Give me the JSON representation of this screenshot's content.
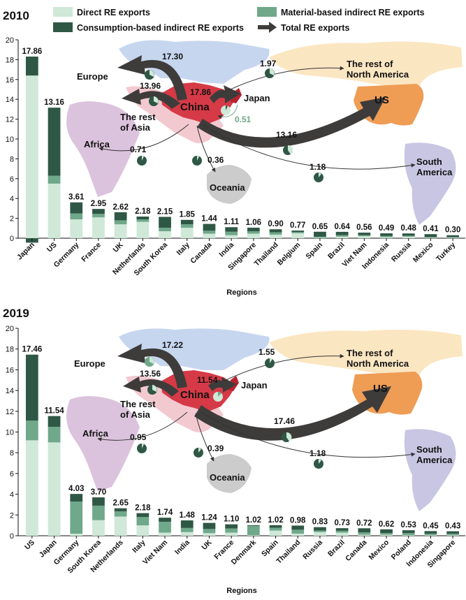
{
  "legend": {
    "direct": "Direct RE exports",
    "material": "Material-based indirect RE exports",
    "consumption": "Consumption-based indirect RE exports",
    "total": "Total RE exports"
  },
  "colors": {
    "direct": "#cfe8d8",
    "material": "#6fa88a",
    "consumption": "#2f5745",
    "arrow": "#3e3c3b",
    "thin_arrow": "#333333",
    "china": "#d63a47",
    "usa": "#ef9c55",
    "south_america": "#c8c6e3",
    "europe": "#c6d6ef",
    "asia": "#f3c9d0",
    "africa": "#dcc3dd",
    "oceania": "#cccccc",
    "north_america_rest": "#fbe6c2"
  },
  "chart_data": [
    {
      "type": "bar",
      "stacked": true,
      "title": "2010",
      "xlabel": "Regions",
      "ylabel": "",
      "ylim": [
        0,
        20
      ],
      "yticks": [
        "0",
        "2",
        "4",
        "6",
        "8",
        "10",
        "12",
        "14",
        "16",
        "18",
        "20"
      ],
      "categories": [
        "Japan",
        "US",
        "Germany",
        "France",
        "UK",
        "Netherlands",
        "South Korea",
        "Italy",
        "Canada",
        "India",
        "Singapore",
        "Thailand",
        "Belgium",
        "Spain",
        "Brazil",
        "Viet Nam",
        "Indonesia",
        "Russia",
        "Mexico",
        "Turkey"
      ],
      "value_labels": [
        "17.86",
        "13.16",
        "3.61",
        "2.95",
        "2.62",
        "2.18",
        "2.15",
        "1.85",
        "1.44",
        "1.11",
        "1.06",
        "0.90",
        "0.77",
        "0.65",
        "0.64",
        "0.56",
        "0.49",
        "0.48",
        "0.41",
        "0.30"
      ],
      "series": [
        {
          "name": "Direct RE exports",
          "values": [
            16.4,
            5.5,
            1.9,
            2.1,
            1.4,
            1.65,
            0.7,
            1.05,
            0.45,
            0.3,
            0.45,
            0.35,
            0.5,
            0.05,
            0.15,
            0.2,
            0.1,
            0.15,
            0.05,
            0.05
          ]
        },
        {
          "name": "Material-based indirect RE exports",
          "values": [
            0,
            0.8,
            0.6,
            0.35,
            0.4,
            0.25,
            0.35,
            0.35,
            0.3,
            0.35,
            0.25,
            0.25,
            0.12,
            0.1,
            0.15,
            0.1,
            0.12,
            0.1,
            0.06,
            0.05
          ]
        },
        {
          "name": "Consumption-based indirect RE exports",
          "values": [
            1.91,
            6.86,
            1.11,
            0.5,
            0.82,
            0.28,
            1.1,
            0.45,
            0.69,
            0.46,
            0.36,
            0.3,
            0.15,
            0.5,
            0.34,
            0.26,
            0.27,
            0.23,
            0.3,
            0.2
          ]
        }
      ],
      "negative_segment": {
        "category": "Japan",
        "series": "Consumption-based indirect RE exports",
        "value": -0.45
      },
      "map": {
        "region_labels": {
          "europe": "Europe",
          "rest_asia": "The rest\nof Asia",
          "china": "China",
          "japan": "Japan",
          "rest_na": "The rest of\nNorth America",
          "us": "US",
          "africa": "Africa",
          "oceania": "Oceania",
          "south_america": "South\nAmerica"
        },
        "flows": [
          {
            "to": "Europe",
            "value": 17.3,
            "label": "17.30"
          },
          {
            "to": "The rest of Asia",
            "value": 13.96,
            "label": "13.96"
          },
          {
            "to": "Japan",
            "value": 17.86,
            "label": "17.86"
          },
          {
            "to": "US",
            "value": 13.16,
            "label": "13.16"
          },
          {
            "to": "The rest of North America",
            "value": 1.97,
            "label": "1.97"
          },
          {
            "to": "Africa",
            "value": 0.71,
            "label": "0.71"
          },
          {
            "to": "Oceania",
            "value": 0.36,
            "label": "0.36"
          },
          {
            "to": "South America",
            "value": 1.18,
            "label": "1.18"
          }
        ],
        "extra_label": "0.51"
      }
    },
    {
      "type": "bar",
      "stacked": true,
      "title": "2019",
      "xlabel": "Regions",
      "ylabel": "",
      "ylim": [
        0,
        20
      ],
      "yticks": [
        "0",
        "2",
        "4",
        "6",
        "8",
        "10",
        "12",
        "14",
        "16",
        "18",
        "20"
      ],
      "categories": [
        "US",
        "Japan",
        "Germany",
        "South Korea",
        "Netherlands",
        "Italy",
        "Viet Nam",
        "India",
        "UK",
        "France",
        "Denmark",
        "Spain",
        "Thailand",
        "Russia",
        "Brazil",
        "Canada",
        "Mexico",
        "Poland",
        "Indonesia",
        "Singapore"
      ],
      "value_labels": [
        "17.46",
        "11.54",
        "4.03",
        "3.70",
        "2.65",
        "2.18",
        "1.74",
        "1.48",
        "1.24",
        "1.10",
        "1.02",
        "1.02",
        "0.98",
        "0.83",
        "0.73",
        "0.72",
        "0.62",
        "0.53",
        "0.45",
        "0.43"
      ],
      "series": [
        {
          "name": "Direct RE exports",
          "values": [
            9.2,
            9.0,
            0.2,
            1.5,
            1.85,
            1.0,
            0.3,
            0.35,
            0.25,
            0.3,
            0.05,
            0.5,
            0.2,
            0.35,
            0.3,
            0.1,
            0.1,
            0.05,
            0.05,
            0.05
          ]
        },
        {
          "name": "Material-based indirect RE exports",
          "values": [
            1.9,
            1.5,
            3.1,
            1.4,
            0.5,
            0.8,
            1.05,
            0.4,
            0.4,
            0.4,
            0.9,
            0.27,
            0.38,
            0.15,
            0.18,
            0.22,
            0.15,
            0.2,
            0.15,
            0.15
          ]
        },
        {
          "name": "Consumption-based indirect RE exports",
          "values": [
            6.36,
            1.04,
            0.73,
            0.8,
            0.3,
            0.38,
            0.39,
            0.73,
            0.59,
            0.4,
            0.07,
            0.25,
            0.4,
            0.33,
            0.25,
            0.4,
            0.37,
            0.28,
            0.25,
            0.23
          ]
        }
      ],
      "map": {
        "region_labels": {
          "europe": "Europe",
          "rest_asia": "The rest\nof Asia",
          "china": "China",
          "japan": "Japan",
          "rest_na": "The rest of\nNorth America",
          "us": "US",
          "africa": "Africa",
          "oceania": "Oceania",
          "south_america": "South\nAmerica"
        },
        "flows": [
          {
            "to": "Europe",
            "value": 17.22,
            "label": "17.22"
          },
          {
            "to": "The rest of Asia",
            "value": 13.56,
            "label": "13.56"
          },
          {
            "to": "Japan",
            "value": 11.54,
            "label": "11.54"
          },
          {
            "to": "US",
            "value": 17.46,
            "label": "17.46"
          },
          {
            "to": "The rest of North America",
            "value": 1.55,
            "label": "1.55"
          },
          {
            "to": "Africa",
            "value": 0.95,
            "label": "0.95"
          },
          {
            "to": "Oceania",
            "value": 0.39,
            "label": "0.39"
          },
          {
            "to": "South America",
            "value": 1.18,
            "label": "1.18"
          }
        ]
      }
    }
  ]
}
